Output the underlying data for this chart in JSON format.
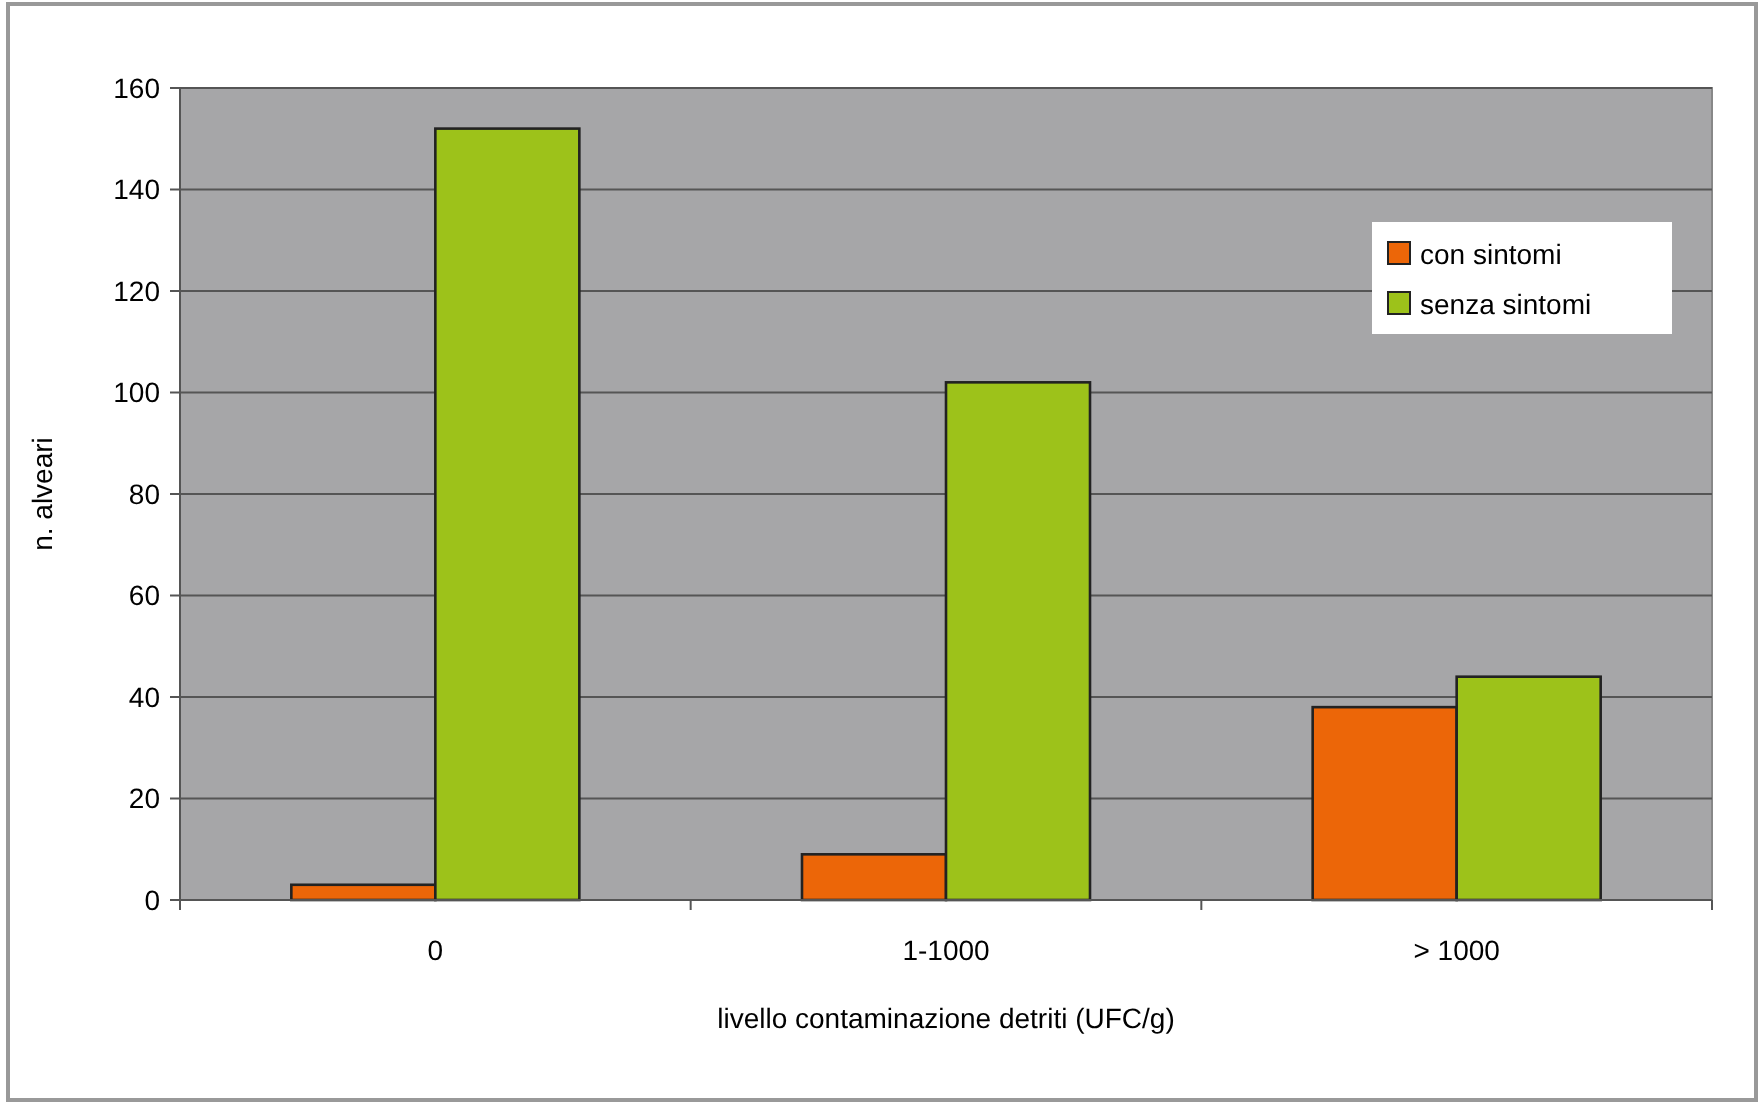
{
  "chart_data": {
    "type": "bar",
    "xlabel": "livello contaminazione detriti (UFC/g)",
    "ylabel": "n. alveari",
    "categories": [
      "0",
      "1-1000",
      "> 1000"
    ],
    "series": [
      {
        "name": "con sintomi",
        "color": "#ec6608",
        "values": [
          3,
          9,
          38
        ]
      },
      {
        "name": "senza sintomi",
        "color": "#9dc21a",
        "values": [
          152,
          102,
          44
        ]
      }
    ],
    "ylim": [
      0,
      160
    ],
    "yticks": [
      0,
      20,
      40,
      60,
      80,
      100,
      120,
      140,
      160
    ],
    "grid": "y",
    "legend": "top right"
  }
}
